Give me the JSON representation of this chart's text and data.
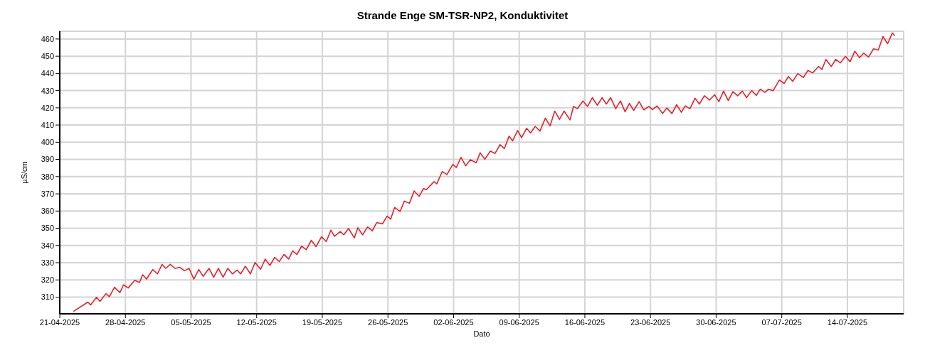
{
  "chart_data": {
    "type": "line",
    "title": "Strande Enge SM-TSR-NP2, Konduktivitet",
    "xlabel": "Dato",
    "ylabel": "µS/cm",
    "x": [
      "2025-04-22T11:00",
      "2025-04-24T00:00",
      "2025-04-24T07:00",
      "2025-04-24T22:00",
      "2025-04-25T07:00",
      "2025-04-25T22:00",
      "2025-04-26T07:00",
      "2025-04-26T20:00",
      "2025-04-27T10:00",
      "2025-04-27T19:00",
      "2025-04-28T07:00",
      "2025-04-29T00:00",
      "2025-04-29T12:00",
      "2025-04-29T20:00",
      "2025-04-30T06:00",
      "2025-04-30T22:00",
      "2025-05-01T10:00",
      "2025-05-01T22:00",
      "2025-05-02T07:00",
      "2025-05-02T19:00",
      "2025-05-03T07:00",
      "2025-05-03T19:00",
      "2025-05-04T07:00",
      "2025-05-04T19:00",
      "2025-05-05T07:00",
      "2025-05-05T20:00",
      "2025-05-06T07:00",
      "2025-05-06T22:00",
      "2025-05-07T10:00",
      "2025-05-07T22:00",
      "2025-05-08T10:00",
      "2025-05-08T22:00",
      "2025-05-09T10:00",
      "2025-05-09T22:00",
      "2025-05-10T07:00",
      "2025-05-10T19:00",
      "2025-05-11T08:00",
      "2025-05-11T20:00",
      "2025-05-12T10:00",
      "2025-05-12T22:00",
      "2025-05-13T10:00",
      "2025-05-13T22:00",
      "2025-05-14T10:00",
      "2025-05-14T22:00",
      "2025-05-15T10:00",
      "2025-05-15T20:00",
      "2025-05-16T07:00",
      "2025-05-16T19:00",
      "2025-05-17T07:00",
      "2025-05-17T20:00",
      "2025-05-18T08:00",
      "2025-05-18T22:00",
      "2025-05-19T10:00",
      "2025-05-19T22:00",
      "2025-05-20T07:00",
      "2025-05-20T22:00",
      "2025-05-21T07:00",
      "2025-05-21T19:00",
      "2025-05-22T10:00",
      "2025-05-22T19:00",
      "2025-05-23T07:00",
      "2025-05-23T20:00",
      "2025-05-24T08:00",
      "2025-05-24T19:00",
      "2025-05-25T10:00",
      "2025-05-25T22:00",
      "2025-05-26T07:00",
      "2025-05-26T17:00",
      "2025-05-27T07:00",
      "2025-05-27T18:00",
      "2025-05-28T07:00",
      "2025-05-28T19:00",
      "2025-05-29T08:00",
      "2025-05-29T19:00",
      "2025-05-30T02:00",
      "2025-05-30T22:00",
      "2025-05-31T05:00",
      "2025-05-31T19:00",
      "2025-06-01T07:00",
      "2025-06-01T22:00",
      "2025-06-02T07:00",
      "2025-06-02T19:00",
      "2025-06-03T07:00",
      "2025-06-03T19:00",
      "2025-06-04T10:00",
      "2025-06-04T20:00",
      "2025-06-05T08:00",
      "2025-06-05T22:00",
      "2025-06-06T10:00",
      "2025-06-06T23:00",
      "2025-06-07T10:00",
      "2025-06-07T22:00",
      "2025-06-08T07:00",
      "2025-06-08T20:00",
      "2025-06-09T06:00",
      "2025-06-09T19:00",
      "2025-06-10T05:00",
      "2025-06-10T17:00",
      "2025-06-11T05:00",
      "2025-06-11T19:00",
      "2025-06-12T07:00",
      "2025-06-12T19:00",
      "2025-06-13T07:00",
      "2025-06-13T19:00",
      "2025-06-14T10:00",
      "2025-06-14T19:00",
      "2025-06-15T05:00",
      "2025-06-15T19:00",
      "2025-06-16T07:00",
      "2025-06-16T19:00",
      "2025-06-17T08:00",
      "2025-06-17T20:00",
      "2025-06-18T07:00",
      "2025-06-18T18:00",
      "2025-06-19T07:00",
      "2025-06-19T19:00",
      "2025-06-20T07:00",
      "2025-06-20T18:00",
      "2025-06-21T05:00",
      "2025-06-21T19:00",
      "2025-06-22T07:00",
      "2025-06-22T20:00",
      "2025-06-23T05:00",
      "2025-06-23T17:00",
      "2025-06-24T07:00",
      "2025-06-24T18:00",
      "2025-06-25T07:00",
      "2025-06-25T19:00",
      "2025-06-26T07:00",
      "2025-06-26T17:00",
      "2025-06-27T05:00",
      "2025-06-27T18:00",
      "2025-06-28T05:00",
      "2025-06-28T18:00",
      "2025-06-29T07:00",
      "2025-06-29T20:00",
      "2025-06-30T07:00",
      "2025-06-30T19:00",
      "2025-07-01T07:00",
      "2025-07-01T19:00",
      "2025-07-02T07:00",
      "2025-07-02T19:00",
      "2025-07-03T06:00",
      "2025-07-03T19:00",
      "2025-07-04T07:00",
      "2025-07-04T17:00",
      "2025-07-05T05:00",
      "2025-07-05T14:00",
      "2025-07-06T02:00",
      "2025-07-06T18:00",
      "2025-07-07T06:00",
      "2025-07-07T17:00",
      "2025-07-08T04:00",
      "2025-07-08T17:00",
      "2025-07-09T07:00",
      "2025-07-09T19:00",
      "2025-07-10T07:00",
      "2025-07-10T22:00",
      "2025-07-11T07:00",
      "2025-07-11T17:00",
      "2025-07-12T07:00",
      "2025-07-12T18:00",
      "2025-07-13T06:00",
      "2025-07-13T19:00",
      "2025-07-14T07:00",
      "2025-07-14T19:00",
      "2025-07-15T07:00",
      "2025-07-15T18:00",
      "2025-07-16T06:00",
      "2025-07-16T19:00",
      "2025-07-17T07:00",
      "2025-07-17T19:00",
      "2025-07-18T07:00",
      "2025-07-18T19:00",
      "2025-07-19T01:00"
    ],
    "series": [
      {
        "color": "#e8202a",
        "values": [
          301.7,
          307.1,
          305.5,
          309.9,
          307.5,
          312.0,
          310.3,
          315.7,
          312.6,
          317.1,
          315.3,
          319.8,
          318.5,
          323.0,
          320.5,
          326.0,
          323.5,
          329.0,
          326.7,
          329.0,
          326.7,
          327.3,
          325.3,
          326.7,
          320.5,
          326.0,
          322.1,
          326.7,
          321.6,
          326.7,
          321.6,
          326.7,
          323.5,
          325.7,
          323.5,
          328.0,
          323.5,
          330.1,
          326.2,
          332.1,
          328.4,
          333.1,
          330.7,
          334.8,
          332.1,
          336.9,
          334.8,
          339.6,
          337.6,
          343.0,
          339.3,
          345.1,
          342.3,
          348.9,
          345.3,
          348.1,
          346.2,
          349.9,
          344.4,
          350.3,
          346.2,
          350.8,
          348.5,
          353.3,
          352.6,
          357.1,
          355.3,
          362.1,
          359.8,
          365.8,
          364.5,
          371.7,
          368.6,
          373.1,
          372.4,
          377.1,
          375.8,
          383.0,
          381.2,
          387.1,
          385.3,
          391.2,
          386.3,
          389.8,
          388.1,
          393.9,
          390.1,
          394.9,
          393.5,
          398.6,
          396.3,
          403.5,
          400.8,
          406.8,
          402.7,
          408.1,
          405.4,
          409.2,
          406.5,
          414.0,
          409.5,
          418.1,
          413.3,
          418.1,
          413.0,
          420.8,
          419.5,
          424.0,
          420.8,
          425.9,
          421.5,
          425.9,
          422.2,
          425.9,
          419.5,
          424.0,
          417.7,
          422.6,
          418.5,
          423.6,
          418.8,
          420.8,
          419.0,
          421.1,
          416.7,
          419.9,
          416.7,
          421.8,
          417.4,
          421.1,
          419.5,
          425.6,
          422.2,
          427.0,
          424.5,
          427.6,
          423.6,
          429.7,
          424.2,
          429.4,
          427.0,
          429.7,
          425.9,
          430.0,
          427.2,
          430.8,
          429.0,
          430.8,
          430.0,
          436.2,
          434.1,
          438.2,
          435.4,
          439.9,
          437.6,
          441.7,
          440.3,
          444.0,
          442.3,
          448.1,
          444.0,
          448.1,
          446.1,
          449.9,
          446.8,
          452.9,
          449.1,
          451.8,
          449.5,
          454.3,
          453.6,
          461.4,
          457.3,
          463.5,
          461.8
        ]
      }
    ],
    "xlim": [
      "2025-04-21",
      "2025-07-20"
    ],
    "ylim": [
      300.3,
      464.5
    ],
    "xticks": [
      {
        "value": "2025-04-21",
        "label": "21-04-2025"
      },
      {
        "value": "2025-04-28",
        "label": "28-04-2025"
      },
      {
        "value": "2025-05-05",
        "label": "05-05-2025"
      },
      {
        "value": "2025-05-12",
        "label": "12-05-2025"
      },
      {
        "value": "2025-05-19",
        "label": "19-05-2025"
      },
      {
        "value": "2025-05-26",
        "label": "26-05-2025"
      },
      {
        "value": "2025-06-02",
        "label": "02-06-2025"
      },
      {
        "value": "2025-06-09",
        "label": "09-06-2025"
      },
      {
        "value": "2025-06-16",
        "label": "16-06-2025"
      },
      {
        "value": "2025-06-23",
        "label": "23-06-2025"
      },
      {
        "value": "2025-06-30",
        "label": "30-06-2025"
      },
      {
        "value": "2025-07-07",
        "label": "07-07-2025"
      },
      {
        "value": "2025-07-14",
        "label": "14-07-2025"
      }
    ],
    "yticks": [
      310,
      320,
      330,
      340,
      350,
      360,
      370,
      380,
      390,
      400,
      410,
      420,
      430,
      440,
      450,
      460
    ],
    "grid": true
  }
}
